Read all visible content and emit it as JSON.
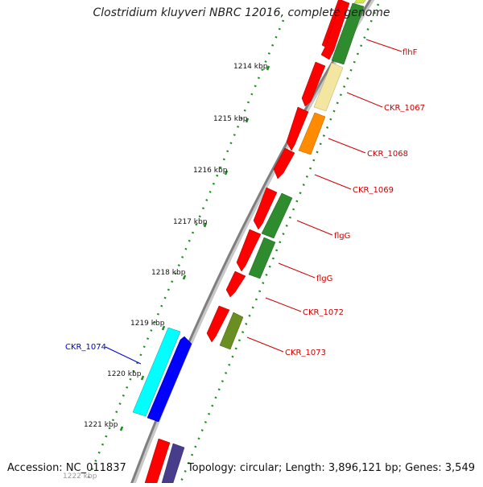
{
  "title": "Clostridium kluyveri NBRC 12016, complete genome",
  "footer": {
    "accession": "Accession: NC_011837",
    "summary": "Topology: circular; Length: 3,896,121 bp; Genes: 3,549"
  },
  "scale_labels": [
    "1214 kbp",
    "1215 kbp",
    "1216 kbp",
    "1217 kbp",
    "1218 kbp",
    "1219 kbp",
    "1220 kbp",
    "1221 kbp",
    "1222 kbp"
  ],
  "gene_labels": [
    "flhF",
    "CKR_1067",
    "CKR_1068",
    "CKR_1069",
    "flgG",
    "flgG",
    "CKR_1072",
    "CKR_1073",
    "CKR_1074"
  ],
  "colors": {
    "backbone": "#808080",
    "scale_dots": "#1e8c1e",
    "label_red": "#cc0000",
    "label_blue": "#0000cc",
    "gene_red": "#ff0000",
    "gene_green": "#2e8b2e",
    "gene_khaki": "#f2e6a0",
    "gene_orange": "#ff8c00",
    "gene_olive": "#6b8e23",
    "gene_cyan": "#00ffff",
    "gene_blue": "#0000ff",
    "gene_slate": "#483d8b"
  }
}
